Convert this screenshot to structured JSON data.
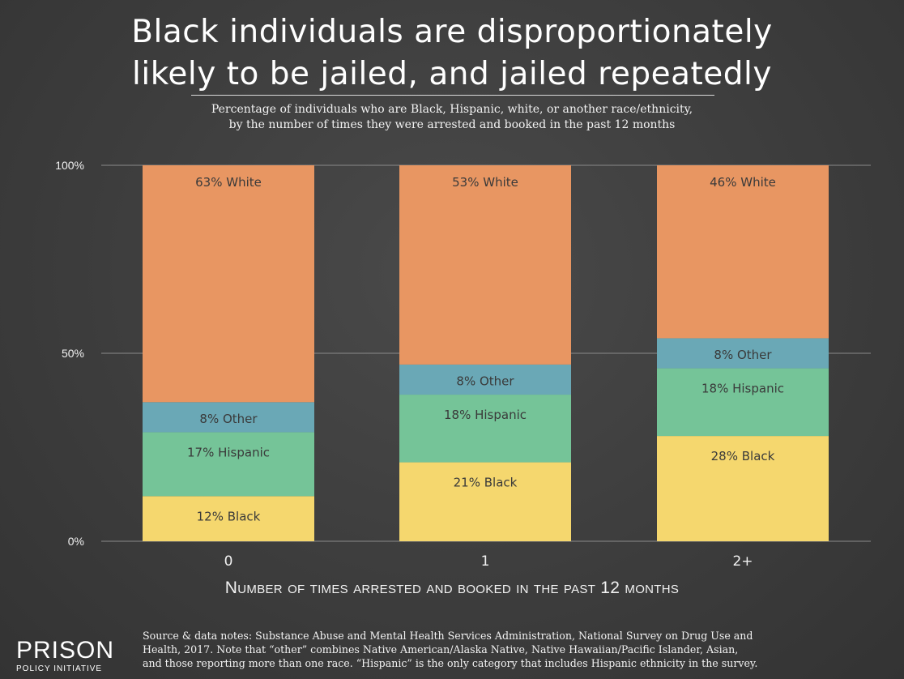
{
  "header": {
    "title_line1": "Black individuals are disproportionately",
    "title_line2": "likely to be jailed, and jailed repeatedly",
    "subtitle_line1": "Percentage of individuals who are Black, Hispanic, white, or another race/ethnicity,",
    "subtitle_line2": "by the number of times they were arrested and booked in the past 12 months"
  },
  "chart_data": {
    "type": "bar",
    "stacked": true,
    "categories": [
      "0",
      "1",
      "2+"
    ],
    "series": [
      {
        "name": "Black",
        "values": [
          12,
          21,
          28
        ],
        "labels": [
          "12% Black",
          "21% Black",
          "28% Black"
        ],
        "color": "#f5d76e"
      },
      {
        "name": "Hispanic",
        "values": [
          17,
          18,
          18
        ],
        "labels": [
          "17% Hispanic",
          "18% Hispanic",
          "18% Hispanic"
        ],
        "color": "#75c498"
      },
      {
        "name": "Other",
        "values": [
          8,
          8,
          8
        ],
        "labels": [
          "8% Other",
          "8% Other",
          "8% Other"
        ],
        "color": "#6aa8b6"
      },
      {
        "name": "White",
        "values": [
          63,
          53,
          46
        ],
        "labels": [
          "63% White",
          "53% White",
          "46% White"
        ],
        "color": "#e89662"
      }
    ],
    "ylim": [
      0,
      100
    ],
    "yticks": [
      "0%",
      "50%",
      "100%"
    ],
    "xlabel": "Number of times arrested and booked in the past 12 months",
    "ylabel": "",
    "grid": true
  },
  "footer": {
    "logo_main": "PRISON",
    "logo_sub": "POLICY INITIATIVE",
    "source_line1": "Source & data notes: Substance Abuse and Mental Health Services Administration, National Survey on Drug Use and",
    "source_line2": "Health, 2017. Note that “other” combines Native American/Alaska Native, Native Hawaiian/Pacific Islander, Asian,",
    "source_line3": "and those reporting more than one race. “Hispanic” is the only category that includes Hispanic ethnicity in the survey."
  }
}
